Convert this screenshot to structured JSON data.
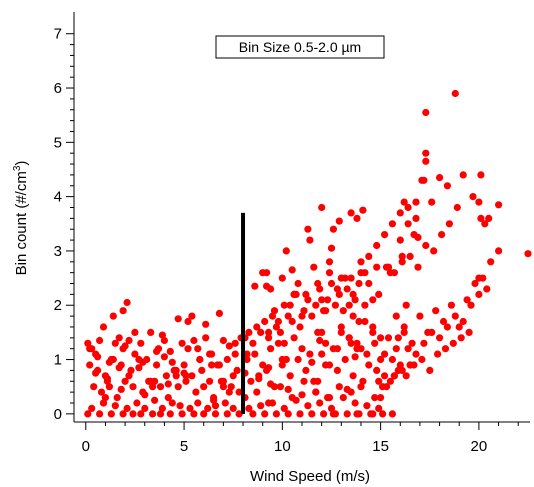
{
  "chart_data": {
    "type": "scatter",
    "title": "",
    "xlabel": "Wind Speed (m/s)",
    "ylabel_main": "Bin count (#/cm",
    "ylabel_sup": "3",
    "ylabel_tail": ")",
    "xlim": [
      -0.6,
      22.6
    ],
    "ylim": [
      -0.15,
      7.4
    ],
    "xticks": [
      0,
      5,
      10,
      15,
      20
    ],
    "yticks": [
      0,
      1,
      2,
      3,
      4,
      5,
      6,
      7
    ],
    "grid": false,
    "legend": "none",
    "annotation": "Bin Size 0.5-2.0 µm",
    "marker_color": "#ff0000",
    "vline": {
      "x": 8.0,
      "y_from": 0.0,
      "y_to": 3.7,
      "color": "#000000"
    },
    "series": [
      {
        "x": [
          0.1,
          0.3,
          0.5,
          0.7,
          0.9,
          1.1,
          1.3,
          1.5,
          1.7,
          1.9,
          2.2,
          2.5,
          2.8,
          3.1,
          3.4,
          3.7,
          4.0,
          4.3,
          4.6,
          4.9,
          5.2,
          5.5,
          5.8,
          6.1,
          6.4,
          6.7,
          7.0,
          7.3,
          7.6,
          7.9,
          0.2,
          0.6,
          1.0,
          1.4,
          1.8,
          2.3,
          2.7,
          3.2,
          3.6,
          4.1,
          4.5,
          5.0,
          5.4,
          5.9,
          6.3,
          6.8,
          7.2,
          7.7,
          0.4,
          0.8,
          1.2,
          1.6,
          2.0,
          2.4,
          2.9,
          3.3,
          3.8,
          4.2,
          4.7,
          5.1,
          5.6,
          6.0,
          6.5,
          6.9,
          7.4,
          7.8,
          0.3,
          0.9,
          1.5,
          2.1,
          2.6,
          3.0,
          3.5,
          3.9,
          4.4,
          4.8,
          5.3,
          5.7,
          6.2,
          6.6,
          7.1,
          7.5,
          0.1,
          0.7,
          1.3,
          1.9,
          2.4,
          2.8,
          3.4,
          3.8,
          4.3,
          4.9,
          5.5,
          6.0,
          6.6,
          7.2,
          7.8,
          0.5,
          1.1,
          1.7,
          2.2,
          2.9,
          3.5,
          4.0,
          4.6,
          5.1,
          5.8,
          6.4,
          7.0,
          7.6,
          1.4,
          2.1,
          1.9,
          4.7,
          5.4,
          6.1,
          6.8,
          5.2,
          3.3,
          0.2,
          0.6,
          1.2,
          2.0,
          2.7,
          3.6,
          4.4,
          5.0,
          5.7,
          6.3,
          7.0,
          7.5,
          1.0,
          1.8,
          3.0,
          4.2,
          6.5,
          7.3,
          2.5,
          3.9,
          0.9,
          8.1,
          8.3,
          8.5,
          8.7,
          8.9,
          9.1,
          9.3,
          9.5,
          9.7,
          9.9,
          10.1,
          10.3,
          10.5,
          10.7,
          10.9,
          11.1,
          11.3,
          11.5,
          11.7,
          11.9,
          12.1,
          12.3,
          12.5,
          12.7,
          12.9,
          13.1,
          13.3,
          13.5,
          13.7,
          13.9,
          8.2,
          8.6,
          9.0,
          9.4,
          9.8,
          10.2,
          10.6,
          11.0,
          11.4,
          11.8,
          12.2,
          12.6,
          13.0,
          13.4,
          13.8,
          14.2,
          14.6,
          15.0,
          8.4,
          8.8,
          9.2,
          9.6,
          10.0,
          10.4,
          10.8,
          11.2,
          11.6,
          12.0,
          12.4,
          12.8,
          13.2,
          13.6,
          14.0,
          14.4,
          14.8,
          15.2,
          8.1,
          8.7,
          9.3,
          9.9,
          10.5,
          11.1,
          11.7,
          12.3,
          12.9,
          13.5,
          14.1,
          14.7,
          15.3,
          8.5,
          9.1,
          9.7,
          10.3,
          10.9,
          11.5,
          12.1,
          12.7,
          13.3,
          13.9,
          14.5,
          15.1,
          8.3,
          8.9,
          9.5,
          10.1,
          10.7,
          11.3,
          11.9,
          12.5,
          13.1,
          13.7,
          14.3,
          14.9,
          9.2,
          10.0,
          10.8,
          11.6,
          12.4,
          13.2,
          14.0,
          14.8,
          9.4,
          10.6,
          11.8,
          13.0,
          14.2,
          15.4,
          10.2,
          11.4,
          12.6,
          13.8,
          9.6,
          10.4,
          11.2,
          12.0,
          12.8,
          13.6,
          14.4,
          9.8,
          11.0,
          12.2,
          13.4,
          14.6,
          10.6,
          12.4,
          8.6,
          9.0,
          11.3,
          12.9,
          13.5,
          14.1,
          8.2,
          10.1,
          12.0,
          13.9,
          9.3,
          11.5,
          13.7,
          12.5,
          11.9,
          10.5,
          15.0,
          15.4,
          15.8,
          16.2,
          16.6,
          17.0,
          17.4,
          17.8,
          18.2,
          18.6,
          19.0,
          19.4,
          19.8,
          20.2,
          20.6,
          21.0,
          15.2,
          15.6,
          16.0,
          16.4,
          16.8,
          17.2,
          17.6,
          18.0,
          18.4,
          18.8,
          19.2,
          19.6,
          20.0,
          20.4,
          15.1,
          15.5,
          15.9,
          16.3,
          16.7,
          17.1,
          17.5,
          17.9,
          18.3,
          18.7,
          19.1,
          19.5,
          15.3,
          15.7,
          16.1,
          16.5,
          16.9,
          17.3,
          17.7,
          18.1,
          18.5,
          18.9,
          16.0,
          16.8,
          17.6,
          18.4,
          19.2,
          20.0,
          14.0,
          14.4,
          14.8,
          15.2,
          15.6,
          16.0,
          16.4,
          16.8,
          17.2,
          13.0,
          13.6,
          14.2,
          14.9,
          15.5,
          16.1,
          16.7,
          12.2,
          12.8,
          13.4,
          14.6,
          15.8,
          16.3,
          15.0,
          15.7,
          16.5,
          14.3,
          13.8,
          14.7,
          15.9,
          16.2,
          17.3,
          17.3,
          17.3,
          18.8,
          18.0,
          20.1,
          20.5,
          21.0,
          20.1,
          20.3,
          19.7,
          22.5,
          17.1,
          16.2,
          12.0,
          9.2,
          9.3,
          16.9,
          16.4,
          20.0,
          12.6,
          13.8,
          14.6,
          15.6,
          8.1,
          8.8,
          9.4,
          10.3,
          11.0,
          11.7,
          12.4,
          13.3,
          14.0,
          14.9,
          15.7,
          16.1,
          16.5,
          10.0,
          11.8,
          13.5
        ],
        "y": [
          1.3,
          1.2,
          1.1,
          1.35,
          0.2,
          0.6,
          1.0,
          1.3,
          1.4,
          1.2,
          1.35,
          1.1,
          1.3,
          1.0,
          0.5,
          1.2,
          1.35,
          1.15,
          0.7,
          1.3,
          1.2,
          1.35,
          1.0,
          1.4,
          1.1,
          0.9,
          1.35,
          1.25,
          1.3,
          1.4,
          0.9,
          0.8,
          0.7,
          1.0,
          0.9,
          0.8,
          1.0,
          0.6,
          0.9,
          0.7,
          0.8,
          0.9,
          0.7,
          0.8,
          0.6,
          0.9,
          1.0,
          0.8,
          0.5,
          0.4,
          0.5,
          0.3,
          0.6,
          0.5,
          0.4,
          0.6,
          0.5,
          0.3,
          0.5,
          0.6,
          0.4,
          0.5,
          0.3,
          0.6,
          0.5,
          0.4,
          0.1,
          0.2,
          0.15,
          0.1,
          0.2,
          0.1,
          0.25,
          0.1,
          0.2,
          0.15,
          0.1,
          0.2,
          0.1,
          0.15,
          0.2,
          0.1,
          0.0,
          0.0,
          0.0,
          0.0,
          0.0,
          0.0,
          0.0,
          0.0,
          0.0,
          0.0,
          0.0,
          0.0,
          0.0,
          0.0,
          0.0,
          0.75,
          0.65,
          0.85,
          0.7,
          0.95,
          0.6,
          1.05,
          0.8,
          0.7,
          1.0,
          0.9,
          0.6,
          1.1,
          1.8,
          2.05,
          1.9,
          1.75,
          1.8,
          1.65,
          1.85,
          1.7,
          1.5,
          1.2,
          1.05,
          0.95,
          1.25,
          0.85,
          1.15,
          0.95,
          0.75,
          1.2,
          1.1,
          0.5,
          0.7,
          0.3,
          0.45,
          0.35,
          0.55,
          0.25,
          0.4,
          1.5,
          1.45,
          1.6,
          1.4,
          1.5,
          1.3,
          1.6,
          1.5,
          1.7,
          1.4,
          1.8,
          1.6,
          1.5,
          2.0,
          1.8,
          1.7,
          2.2,
          1.6,
          1.9,
          2.1,
          1.8,
          2.0,
          2.3,
          1.9,
          2.1,
          2.4,
          2.0,
          2.2,
          1.9,
          2.3,
          2.5,
          2.1,
          2.4,
          1.0,
          1.1,
          0.9,
          1.2,
          1.3,
          1.0,
          1.4,
          1.2,
          1.1,
          1.5,
          1.3,
          1.2,
          1.6,
          1.4,
          1.3,
          1.7,
          1.5,
          1.4,
          0.6,
          0.7,
          0.8,
          0.5,
          0.9,
          0.7,
          1.0,
          0.8,
          0.6,
          1.1,
          0.9,
          0.8,
          1.0,
          0.7,
          1.2,
          0.9,
          0.8,
          1.1,
          0.3,
          0.4,
          0.2,
          0.5,
          0.3,
          0.6,
          0.4,
          0.3,
          0.5,
          0.4,
          0.6,
          0.3,
          0.5,
          0.0,
          0.0,
          0.0,
          0.0,
          0.0,
          0.0,
          0.0,
          0.0,
          0.0,
          0.0,
          0.0,
          0.0,
          0.1,
          0.15,
          0.2,
          0.1,
          0.25,
          0.15,
          0.2,
          0.1,
          0.3,
          0.2,
          0.15,
          0.1,
          2.6,
          2.5,
          2.4,
          2.7,
          2.6,
          2.5,
          2.8,
          2.7,
          2.3,
          2.2,
          2.4,
          2.5,
          2.6,
          2.7,
          3.0,
          3.2,
          3.4,
          3.6,
          1.9,
          2.0,
          2.2,
          2.1,
          2.3,
          2.2,
          2.4,
          1.7,
          1.8,
          1.9,
          2.0,
          2.1,
          2.2,
          2.8,
          2.35,
          2.6,
          3.4,
          3.55,
          3.7,
          3.75,
          1.1,
          1.3,
          1.5,
          1.7,
          0.85,
          0.95,
          1.05,
          3.05,
          1.35,
          2.65,
          1.0,
          1.4,
          1.2,
          1.6,
          1.3,
          1.8,
          1.5,
          1.9,
          1.7,
          2.0,
          1.6,
          2.1,
          2.4,
          2.5,
          2.8,
          3.0,
          0.7,
          1.0,
          0.9,
          1.2,
          1.1,
          1.3,
          1.5,
          1.4,
          1.6,
          1.8,
          1.7,
          2.0,
          2.2,
          2.3,
          0.5,
          0.6,
          0.8,
          0.7,
          0.9,
          1.0,
          0.8,
          1.1,
          1.2,
          1.3,
          1.4,
          1.5,
          2.7,
          2.6,
          2.8,
          2.9,
          2.7,
          3.1,
          3.0,
          3.3,
          3.5,
          3.8,
          3.2,
          3.6,
          3.9,
          4.2,
          4.4,
          3.9,
          2.6,
          2.9,
          3.1,
          3.3,
          3.5,
          3.7,
          3.8,
          3.9,
          4.3,
          1.5,
          1.8,
          2.0,
          2.2,
          2.6,
          2.9,
          3.3,
          0.9,
          1.2,
          1.4,
          1.6,
          1.8,
          2.0,
          0.3,
          0.7,
          0.9,
          1.1,
          1.2,
          1.3,
          1.4,
          1.5,
          5.55,
          4.8,
          4.65,
          5.9,
          4.35,
          4.4,
          3.6,
          3.85,
          3.6,
          3.5,
          4.0,
          2.95,
          4.3,
          3.9,
          3.8,
          2.35,
          1.5,
          3.25,
          3.5,
          2.5,
          0.0,
          0.0,
          0.0,
          0.0,
          0.75,
          0.65,
          0.55,
          0.45,
          0.35,
          0.4,
          0.3,
          0.45,
          0.5,
          0.6,
          0.7,
          0.8,
          0.9,
          1.0,
          0.6,
          1.3
        ]
      }
    ]
  }
}
